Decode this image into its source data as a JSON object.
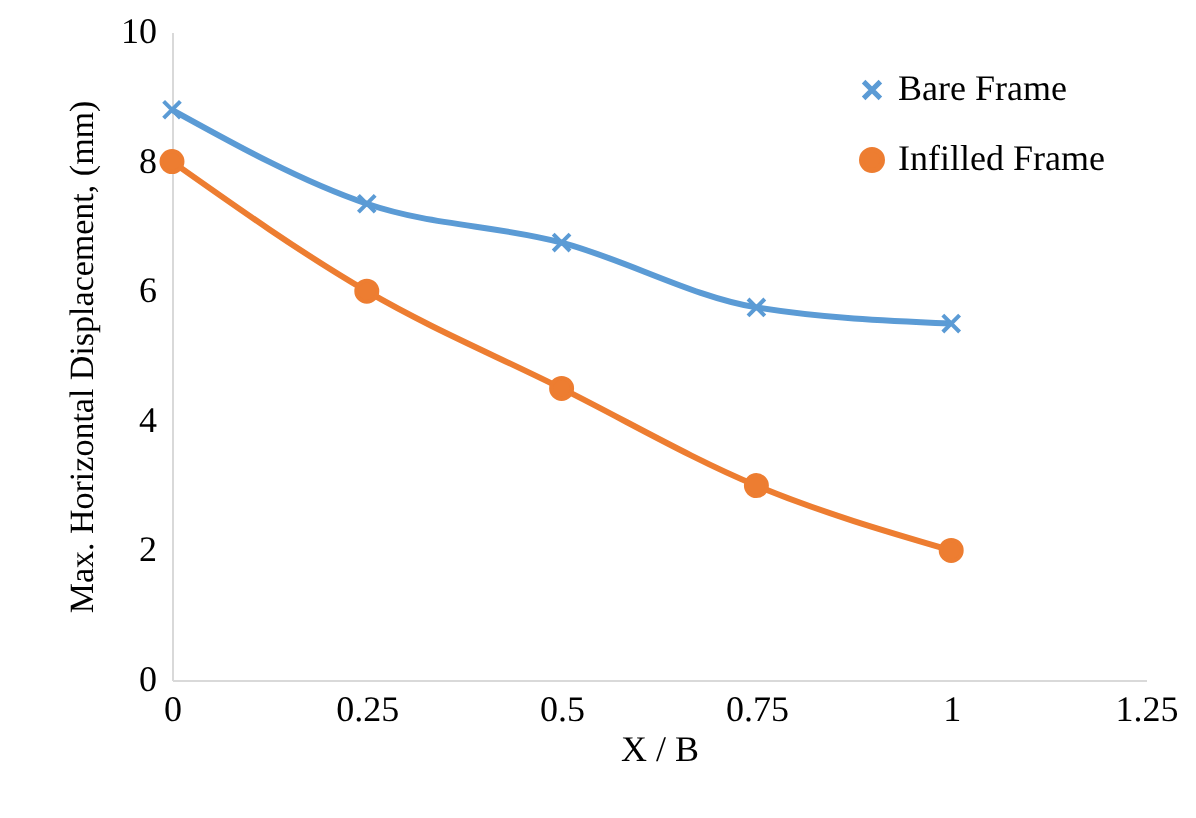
{
  "chart_data": {
    "type": "line",
    "xlabel": "X / B",
    "ylabel": "Max. Horizontal Displacement, (mm)",
    "x": [
      0,
      0.25,
      0.5,
      0.75,
      1
    ],
    "xlim": [
      0,
      1.25
    ],
    "xticks": [
      0,
      0.25,
      0.5,
      0.75,
      1,
      1.25
    ],
    "ylim": [
      0,
      10
    ],
    "yticks": [
      0,
      2,
      4,
      6,
      8,
      10
    ],
    "grid": false,
    "legend": "top right",
    "line_style": "solid",
    "series": [
      {
        "name": "Bare Frame",
        "color": "#5b9bd5",
        "marker": "cross",
        "values": [
          8.8,
          7.35,
          6.75,
          5.75,
          5.5
        ]
      },
      {
        "name": "Infilled Frame",
        "color": "#ed7d31",
        "marker": "circle",
        "values": [
          8,
          6,
          4.5,
          3,
          2
        ]
      }
    ]
  }
}
